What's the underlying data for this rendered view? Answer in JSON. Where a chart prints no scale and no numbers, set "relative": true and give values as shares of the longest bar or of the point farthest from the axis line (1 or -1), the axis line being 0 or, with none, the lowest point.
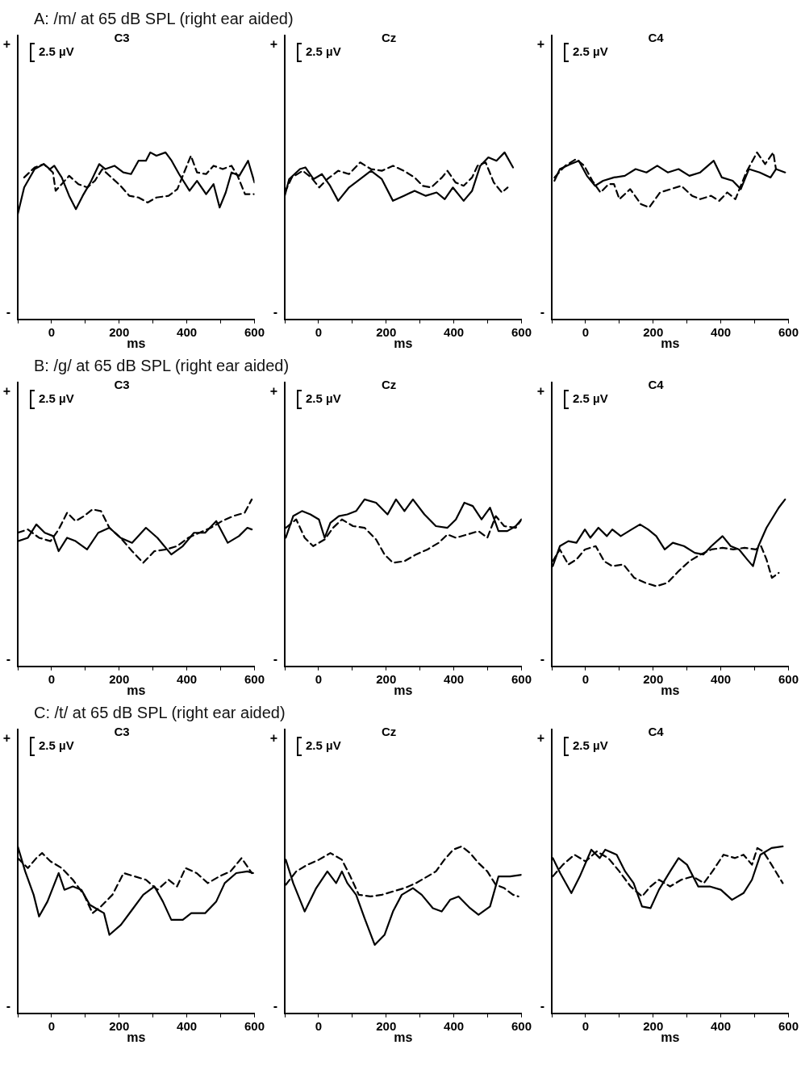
{
  "chart_data": [
    {
      "type": "line",
      "subtitle": "A: /m/ at 65 dB SPL (right ear aided)",
      "title": "C3",
      "xlabel": "ms",
      "annotations": [
        "+",
        "-",
        "2.5 µV"
      ],
      "relative": true,
      "xlim": [
        -100,
        600
      ],
      "xticks": [
        {
          "value": -100,
          "label": null
        },
        0,
        {
          "value": 100,
          "label": null
        },
        200,
        {
          "value": 300,
          "label": null
        },
        400,
        {
          "value": 500,
          "label": null
        },
        600
      ],
      "grid": false,
      "marker": "none",
      "series": [
        {
          "color": "#000000",
          "line_style": "solid",
          "x": [
            -100,
            -81,
            -50,
            -23,
            -5,
            8,
            30,
            52,
            72,
            92,
            115,
            141,
            159,
            186,
            212,
            235,
            257,
            279,
            292,
            310,
            337,
            355,
            377,
            408,
            430,
            457,
            479,
            497,
            515,
            532,
            555,
            581,
            600
          ],
          "values": [
            0.63,
            0.79,
            0.9,
            0.93,
            0.9,
            0.92,
            0.85,
            0.74,
            0.66,
            0.74,
            0.82,
            0.93,
            0.9,
            0.92,
            0.88,
            0.87,
            0.95,
            0.95,
            1.0,
            0.98,
            1.0,
            0.95,
            0.87,
            0.77,
            0.83,
            0.75,
            0.81,
            0.67,
            0.76,
            0.88,
            0.86,
            0.95,
            0.82
          ]
        },
        {
          "color": "#000000",
          "line_style": "dashed",
          "x": [
            -81,
            -50,
            -23,
            4,
            12,
            30,
            52,
            79,
            106,
            128,
            150,
            177,
            204,
            230,
            257,
            284,
            310,
            346,
            372,
            390,
            412,
            430,
            457,
            479,
            506,
            532,
            550,
            572,
            599
          ],
          "values": [
            0.85,
            0.91,
            0.93,
            0.88,
            0.77,
            0.81,
            0.86,
            0.81,
            0.79,
            0.83,
            0.9,
            0.85,
            0.8,
            0.74,
            0.73,
            0.7,
            0.73,
            0.74,
            0.78,
            0.87,
            0.98,
            0.88,
            0.87,
            0.92,
            0.9,
            0.92,
            0.86,
            0.75,
            0.75
          ]
        }
      ]
    },
    {
      "type": "line",
      "title": "Cz",
      "xlabel": "ms",
      "annotations": [
        "+",
        "-",
        "2.5 µV"
      ],
      "relative": true,
      "xlim": [
        -100,
        600
      ],
      "xticks": [
        {
          "value": -100,
          "label": null
        },
        0,
        {
          "value": 100,
          "label": null
        },
        200,
        {
          "value": 300,
          "label": null
        },
        400,
        {
          "value": 500,
          "label": null
        },
        600
      ],
      "grid": false,
      "marker": "none",
      "series": [
        {
          "color": "#000000",
          "line_style": "solid",
          "x": [
            -100,
            -87,
            -55,
            -39,
            -15,
            10,
            34,
            58,
            90,
            123,
            155,
            187,
            220,
            252,
            284,
            317,
            349,
            373,
            397,
            429,
            454,
            478,
            502,
            526,
            550,
            575
          ],
          "values": [
            0.74,
            0.84,
            0.9,
            0.91,
            0.84,
            0.87,
            0.8,
            0.71,
            0.79,
            0.84,
            0.89,
            0.84,
            0.71,
            0.74,
            0.77,
            0.74,
            0.76,
            0.72,
            0.79,
            0.71,
            0.77,
            0.92,
            0.97,
            0.95,
            1.0,
            0.91
          ]
        },
        {
          "color": "#000000",
          "line_style": "dashed",
          "x": [
            -100,
            -79,
            -47,
            -22,
            2,
            26,
            58,
            90,
            123,
            155,
            187,
            220,
            252,
            284,
            308,
            333,
            365,
            381,
            405,
            429,
            454,
            470,
            494,
            518,
            542,
            559
          ],
          "values": [
            0.76,
            0.85,
            0.89,
            0.85,
            0.79,
            0.84,
            0.89,
            0.87,
            0.94,
            0.9,
            0.89,
            0.92,
            0.89,
            0.85,
            0.8,
            0.79,
            0.85,
            0.89,
            0.82,
            0.8,
            0.85,
            0.92,
            0.94,
            0.82,
            0.76,
            0.79
          ]
        }
      ]
    },
    {
      "type": "line",
      "title": "C4",
      "xlabel": "ms",
      "annotations": [
        "+",
        "-",
        "2.5 µV"
      ],
      "relative": true,
      "xlim": [
        -100,
        600
      ],
      "xticks": [
        {
          "value": -100,
          "label": null
        },
        0,
        {
          "value": 100,
          "label": null
        },
        200,
        {
          "value": 300,
          "label": null
        },
        400,
        {
          "value": 500,
          "label": null
        },
        600
      ],
      "grid": false,
      "marker": "none",
      "series": [
        {
          "color": "#000000",
          "line_style": "solid",
          "x": [
            -92,
            -76,
            -44,
            -20,
            4,
            28,
            52,
            84,
            116,
            148,
            180,
            212,
            243,
            275,
            307,
            339,
            379,
            403,
            435,
            459,
            483,
            515,
            547,
            563,
            590
          ],
          "values": [
            0.83,
            0.9,
            0.93,
            0.95,
            0.86,
            0.8,
            0.83,
            0.85,
            0.86,
            0.9,
            0.88,
            0.92,
            0.88,
            0.9,
            0.86,
            0.88,
            0.95,
            0.85,
            0.83,
            0.78,
            0.9,
            0.88,
            0.85,
            0.9,
            0.88
          ]
        },
        {
          "color": "#000000",
          "line_style": "dashed",
          "x": [
            -92,
            -60,
            -28,
            -4,
            20,
            44,
            68,
            84,
            100,
            132,
            164,
            188,
            220,
            252,
            283,
            315,
            339,
            371,
            395,
            419,
            443,
            475,
            507,
            531,
            555,
            563
          ],
          "values": [
            0.85,
            0.92,
            0.96,
            0.92,
            0.83,
            0.76,
            0.81,
            0.81,
            0.72,
            0.78,
            0.69,
            0.67,
            0.76,
            0.78,
            0.8,
            0.74,
            0.72,
            0.74,
            0.71,
            0.76,
            0.72,
            0.88,
            1.0,
            0.93,
            1.0,
            0.9
          ]
        }
      ]
    },
    {
      "type": "line",
      "subtitle": "B: /g/ at 65 dB SPL (right ear aided)",
      "title": "C3",
      "xlabel": "ms",
      "annotations": [
        "+",
        "-",
        "2.5 µV"
      ],
      "relative": true,
      "xlim": [
        -100,
        600
      ],
      "xticks": [
        {
          "value": -100,
          "label": null
        },
        0,
        {
          "value": 100,
          "label": null
        },
        200,
        {
          "value": 300,
          "label": null
        },
        400,
        {
          "value": 500,
          "label": null
        },
        600
      ],
      "grid": false,
      "marker": "none",
      "series": [
        {
          "color": "#000000",
          "line_style": "solid",
          "x": [
            -100,
            -70,
            -45,
            -20,
            5,
            21,
            46,
            71,
            105,
            138,
            171,
            204,
            238,
            279,
            313,
            354,
            388,
            421,
            454,
            487,
            521,
            554,
            579,
            592
          ],
          "values": [
            0.75,
            0.77,
            0.85,
            0.8,
            0.78,
            0.69,
            0.77,
            0.75,
            0.7,
            0.8,
            0.83,
            0.77,
            0.74,
            0.83,
            0.77,
            0.67,
            0.72,
            0.8,
            0.8,
            0.87,
            0.74,
            0.78,
            0.83,
            0.82
          ]
        },
        {
          "color": "#000000",
          "line_style": "dashed",
          "x": [
            -100,
            -70,
            -37,
            -3,
            21,
            46,
            71,
            96,
            121,
            146,
            171,
            204,
            238,
            271,
            304,
            338,
            371,
            404,
            437,
            471,
            504,
            537,
            571,
            592
          ],
          "values": [
            0.8,
            0.82,
            0.77,
            0.75,
            0.82,
            0.92,
            0.87,
            0.9,
            0.94,
            0.93,
            0.83,
            0.77,
            0.69,
            0.62,
            0.69,
            0.7,
            0.72,
            0.77,
            0.8,
            0.83,
            0.87,
            0.9,
            0.92,
            1.0
          ]
        }
      ]
    },
    {
      "type": "line",
      "title": "Cz",
      "xlabel": "ms",
      "annotations": [
        "+",
        "-",
        "2.5 µV"
      ],
      "relative": true,
      "xlim": [
        -100,
        600
      ],
      "xticks": [
        {
          "value": -100,
          "label": null
        },
        0,
        {
          "value": 100,
          "label": null
        },
        200,
        {
          "value": 300,
          "label": null
        },
        400,
        {
          "value": 500,
          "label": null
        },
        600
      ],
      "grid": false,
      "marker": "none",
      "series": [
        {
          "color": "#000000",
          "line_style": "solid",
          "x": [
            -97,
            -75,
            -49,
            -24,
            1,
            18,
            35,
            60,
            85,
            111,
            136,
            170,
            204,
            229,
            254,
            279,
            313,
            347,
            381,
            406,
            431,
            456,
            482,
            507,
            532,
            558,
            583,
            600
          ],
          "values": [
            0.77,
            0.9,
            0.93,
            0.91,
            0.88,
            0.77,
            0.86,
            0.9,
            0.91,
            0.93,
            1.0,
            0.98,
            0.91,
            1.0,
            0.93,
            1.0,
            0.91,
            0.84,
            0.83,
            0.88,
            0.98,
            0.96,
            0.88,
            0.95,
            0.81,
            0.81,
            0.84,
            0.88
          ]
        },
        {
          "color": "#000000",
          "line_style": "dashed",
          "x": [
            -97,
            -66,
            -41,
            -16,
            18,
            43,
            69,
            102,
            136,
            170,
            195,
            220,
            254,
            288,
            322,
            355,
            381,
            406,
            440,
            473,
            499,
            524,
            549,
            583,
            600
          ],
          "values": [
            0.83,
            0.88,
            0.77,
            0.72,
            0.76,
            0.83,
            0.88,
            0.84,
            0.83,
            0.76,
            0.67,
            0.62,
            0.63,
            0.67,
            0.7,
            0.74,
            0.79,
            0.77,
            0.79,
            0.81,
            0.77,
            0.9,
            0.84,
            0.83,
            0.88
          ]
        }
      ]
    },
    {
      "type": "line",
      "title": "C4",
      "xlabel": "ms",
      "annotations": [
        "+",
        "-",
        "2.5 µV"
      ],
      "relative": true,
      "xlim": [
        -100,
        600
      ],
      "xticks": [
        {
          "value": -100,
          "label": null
        },
        0,
        {
          "value": 100,
          "label": null
        },
        200,
        {
          "value": 300,
          "label": null
        },
        400,
        {
          "value": 500,
          "label": null
        },
        600
      ],
      "grid": false,
      "marker": "none",
      "series": [
        {
          "color": "#000000",
          "line_style": "solid",
          "x": [
            -97,
            -76,
            -51,
            -27,
            -2,
            14,
            38,
            63,
            79,
            104,
            136,
            161,
            185,
            209,
            234,
            258,
            291,
            323,
            348,
            372,
            405,
            429,
            454,
            478,
            495,
            511,
            535,
            571,
            590
          ],
          "values": [
            0.6,
            0.72,
            0.75,
            0.74,
            0.82,
            0.77,
            0.83,
            0.78,
            0.82,
            0.78,
            0.82,
            0.85,
            0.82,
            0.78,
            0.7,
            0.74,
            0.72,
            0.68,
            0.67,
            0.72,
            0.78,
            0.72,
            0.7,
            0.64,
            0.6,
            0.72,
            0.83,
            0.95,
            1.0
          ]
        },
        {
          "color": "#000000",
          "line_style": "dashed",
          "x": [
            -97,
            -76,
            -51,
            -27,
            -2,
            30,
            55,
            79,
            112,
            144,
            177,
            209,
            242,
            275,
            307,
            340,
            372,
            405,
            437,
            470,
            503,
            519,
            535,
            551,
            571
          ],
          "values": [
            0.63,
            0.7,
            0.61,
            0.64,
            0.7,
            0.72,
            0.63,
            0.6,
            0.61,
            0.53,
            0.5,
            0.48,
            0.5,
            0.57,
            0.63,
            0.67,
            0.7,
            0.71,
            0.7,
            0.71,
            0.7,
            0.72,
            0.64,
            0.53,
            0.56
          ]
        }
      ]
    },
    {
      "type": "line",
      "subtitle": "C: /t/ at 65 dB SPL (right ear aided)",
      "title": "C3",
      "xlabel": "ms",
      "annotations": [
        "+",
        "-",
        "2.5 µV"
      ],
      "relative": true,
      "xlim": [
        -100,
        600
      ],
      "xticks": [
        {
          "value": -100,
          "label": null
        },
        0,
        {
          "value": 100,
          "label": null
        },
        200,
        {
          "value": 300,
          "label": null
        },
        400,
        {
          "value": 500,
          "label": null
        },
        600
      ],
      "grid": false,
      "marker": "none",
      "series": [
        {
          "color": "#000000",
          "line_style": "solid",
          "x": [
            -100,
            -78,
            -53,
            -37,
            -12,
            21,
            38,
            63,
            88,
            113,
            138,
            155,
            171,
            205,
            238,
            271,
            304,
            329,
            354,
            388,
            413,
            454,
            487,
            512,
            546,
            579,
            596
          ],
          "values": [
            1.0,
            0.85,
            0.71,
            0.58,
            0.67,
            0.84,
            0.74,
            0.76,
            0.74,
            0.65,
            0.62,
            0.6,
            0.47,
            0.53,
            0.62,
            0.71,
            0.76,
            0.67,
            0.56,
            0.56,
            0.6,
            0.6,
            0.67,
            0.78,
            0.84,
            0.85,
            0.84
          ]
        },
        {
          "color": "#000000",
          "line_style": "dashed",
          "x": [
            -100,
            -70,
            -45,
            -28,
            -3,
            30,
            63,
            96,
            121,
            146,
            180,
            213,
            246,
            279,
            313,
            346,
            371,
            396,
            429,
            462,
            496,
            529,
            562,
            592
          ],
          "values": [
            0.93,
            0.87,
            0.93,
            0.96,
            0.91,
            0.87,
            0.8,
            0.71,
            0.6,
            0.64,
            0.71,
            0.84,
            0.82,
            0.8,
            0.74,
            0.8,
            0.76,
            0.87,
            0.84,
            0.78,
            0.82,
            0.85,
            0.93,
            0.84
          ]
        }
      ]
    },
    {
      "type": "line",
      "title": "Cz",
      "xlabel": "ms",
      "annotations": [
        "+",
        "-",
        "2.5 µV"
      ],
      "relative": true,
      "xlim": [
        -100,
        600
      ],
      "xticks": [
        {
          "value": -100,
          "label": null
        },
        0,
        {
          "value": 100,
          "label": null
        },
        200,
        {
          "value": 300,
          "label": null
        },
        400,
        {
          "value": 500,
          "label": null
        },
        600
      ],
      "grid": false,
      "marker": "none",
      "series": [
        {
          "color": "#000000",
          "line_style": "solid",
          "x": [
            -97,
            -75,
            -41,
            -7,
            26,
            52,
            69,
            85,
            111,
            136,
            166,
            195,
            220,
            246,
            279,
            305,
            338,
            364,
            389,
            414,
            448,
            473,
            507,
            532,
            566,
            600
          ],
          "values": [
            0.92,
            0.78,
            0.61,
            0.75,
            0.85,
            0.78,
            0.85,
            0.78,
            0.71,
            0.57,
            0.41,
            0.47,
            0.61,
            0.71,
            0.75,
            0.71,
            0.63,
            0.61,
            0.68,
            0.7,
            0.63,
            0.59,
            0.64,
            0.82,
            0.82,
            0.83
          ]
        },
        {
          "color": "#000000",
          "line_style": "dashed",
          "x": [
            -97,
            -66,
            -33,
            1,
            35,
            69,
            94,
            119,
            153,
            187,
            220,
            254,
            288,
            322,
            347,
            372,
            398,
            423,
            448,
            473,
            499,
            524,
            549,
            575,
            591
          ],
          "values": [
            0.77,
            0.85,
            0.89,
            0.92,
            0.96,
            0.92,
            0.82,
            0.71,
            0.7,
            0.71,
            0.73,
            0.75,
            0.78,
            0.82,
            0.85,
            0.92,
            0.98,
            1.0,
            0.96,
            0.9,
            0.85,
            0.77,
            0.75,
            0.71,
            0.7
          ]
        }
      ]
    },
    {
      "type": "line",
      "title": "C4",
      "xlabel": "ms",
      "annotations": [
        "+",
        "-",
        "2.5 µV"
      ],
      "relative": true,
      "xlim": [
        -100,
        600
      ],
      "xticks": [
        {
          "value": -100,
          "label": null
        },
        0,
        {
          "value": 100,
          "label": null
        },
        200,
        {
          "value": 300,
          "label": null
        },
        400,
        {
          "value": 500,
          "label": null
        },
        600
      ],
      "grid": false,
      "marker": "none",
      "series": [
        {
          "color": "#000000",
          "line_style": "solid",
          "x": [
            -97,
            -75,
            -42,
            -17,
            17,
            42,
            58,
            92,
            117,
            142,
            167,
            192,
            217,
            250,
            275,
            300,
            333,
            367,
            400,
            433,
            467,
            492,
            517,
            550,
            583
          ],
          "values": [
            0.93,
            0.84,
            0.72,
            0.82,
            0.98,
            0.93,
            0.98,
            0.95,
            0.85,
            0.78,
            0.64,
            0.63,
            0.74,
            0.85,
            0.93,
            0.89,
            0.76,
            0.76,
            0.74,
            0.68,
            0.72,
            0.8,
            0.95,
            0.99,
            1.0
          ]
        },
        {
          "color": "#000000",
          "line_style": "dashed",
          "x": [
            -97,
            -67,
            -33,
            0,
            33,
            67,
            100,
            133,
            167,
            192,
            217,
            250,
            283,
            317,
            350,
            375,
            408,
            442,
            467,
            492,
            508,
            525,
            550,
            583
          ],
          "values": [
            0.82,
            0.89,
            0.95,
            0.91,
            0.97,
            0.93,
            0.85,
            0.76,
            0.7,
            0.76,
            0.8,
            0.76,
            0.8,
            0.82,
            0.78,
            0.85,
            0.95,
            0.93,
            0.95,
            0.89,
            0.99,
            0.97,
            0.89,
            0.78
          ]
        }
      ]
    }
  ]
}
